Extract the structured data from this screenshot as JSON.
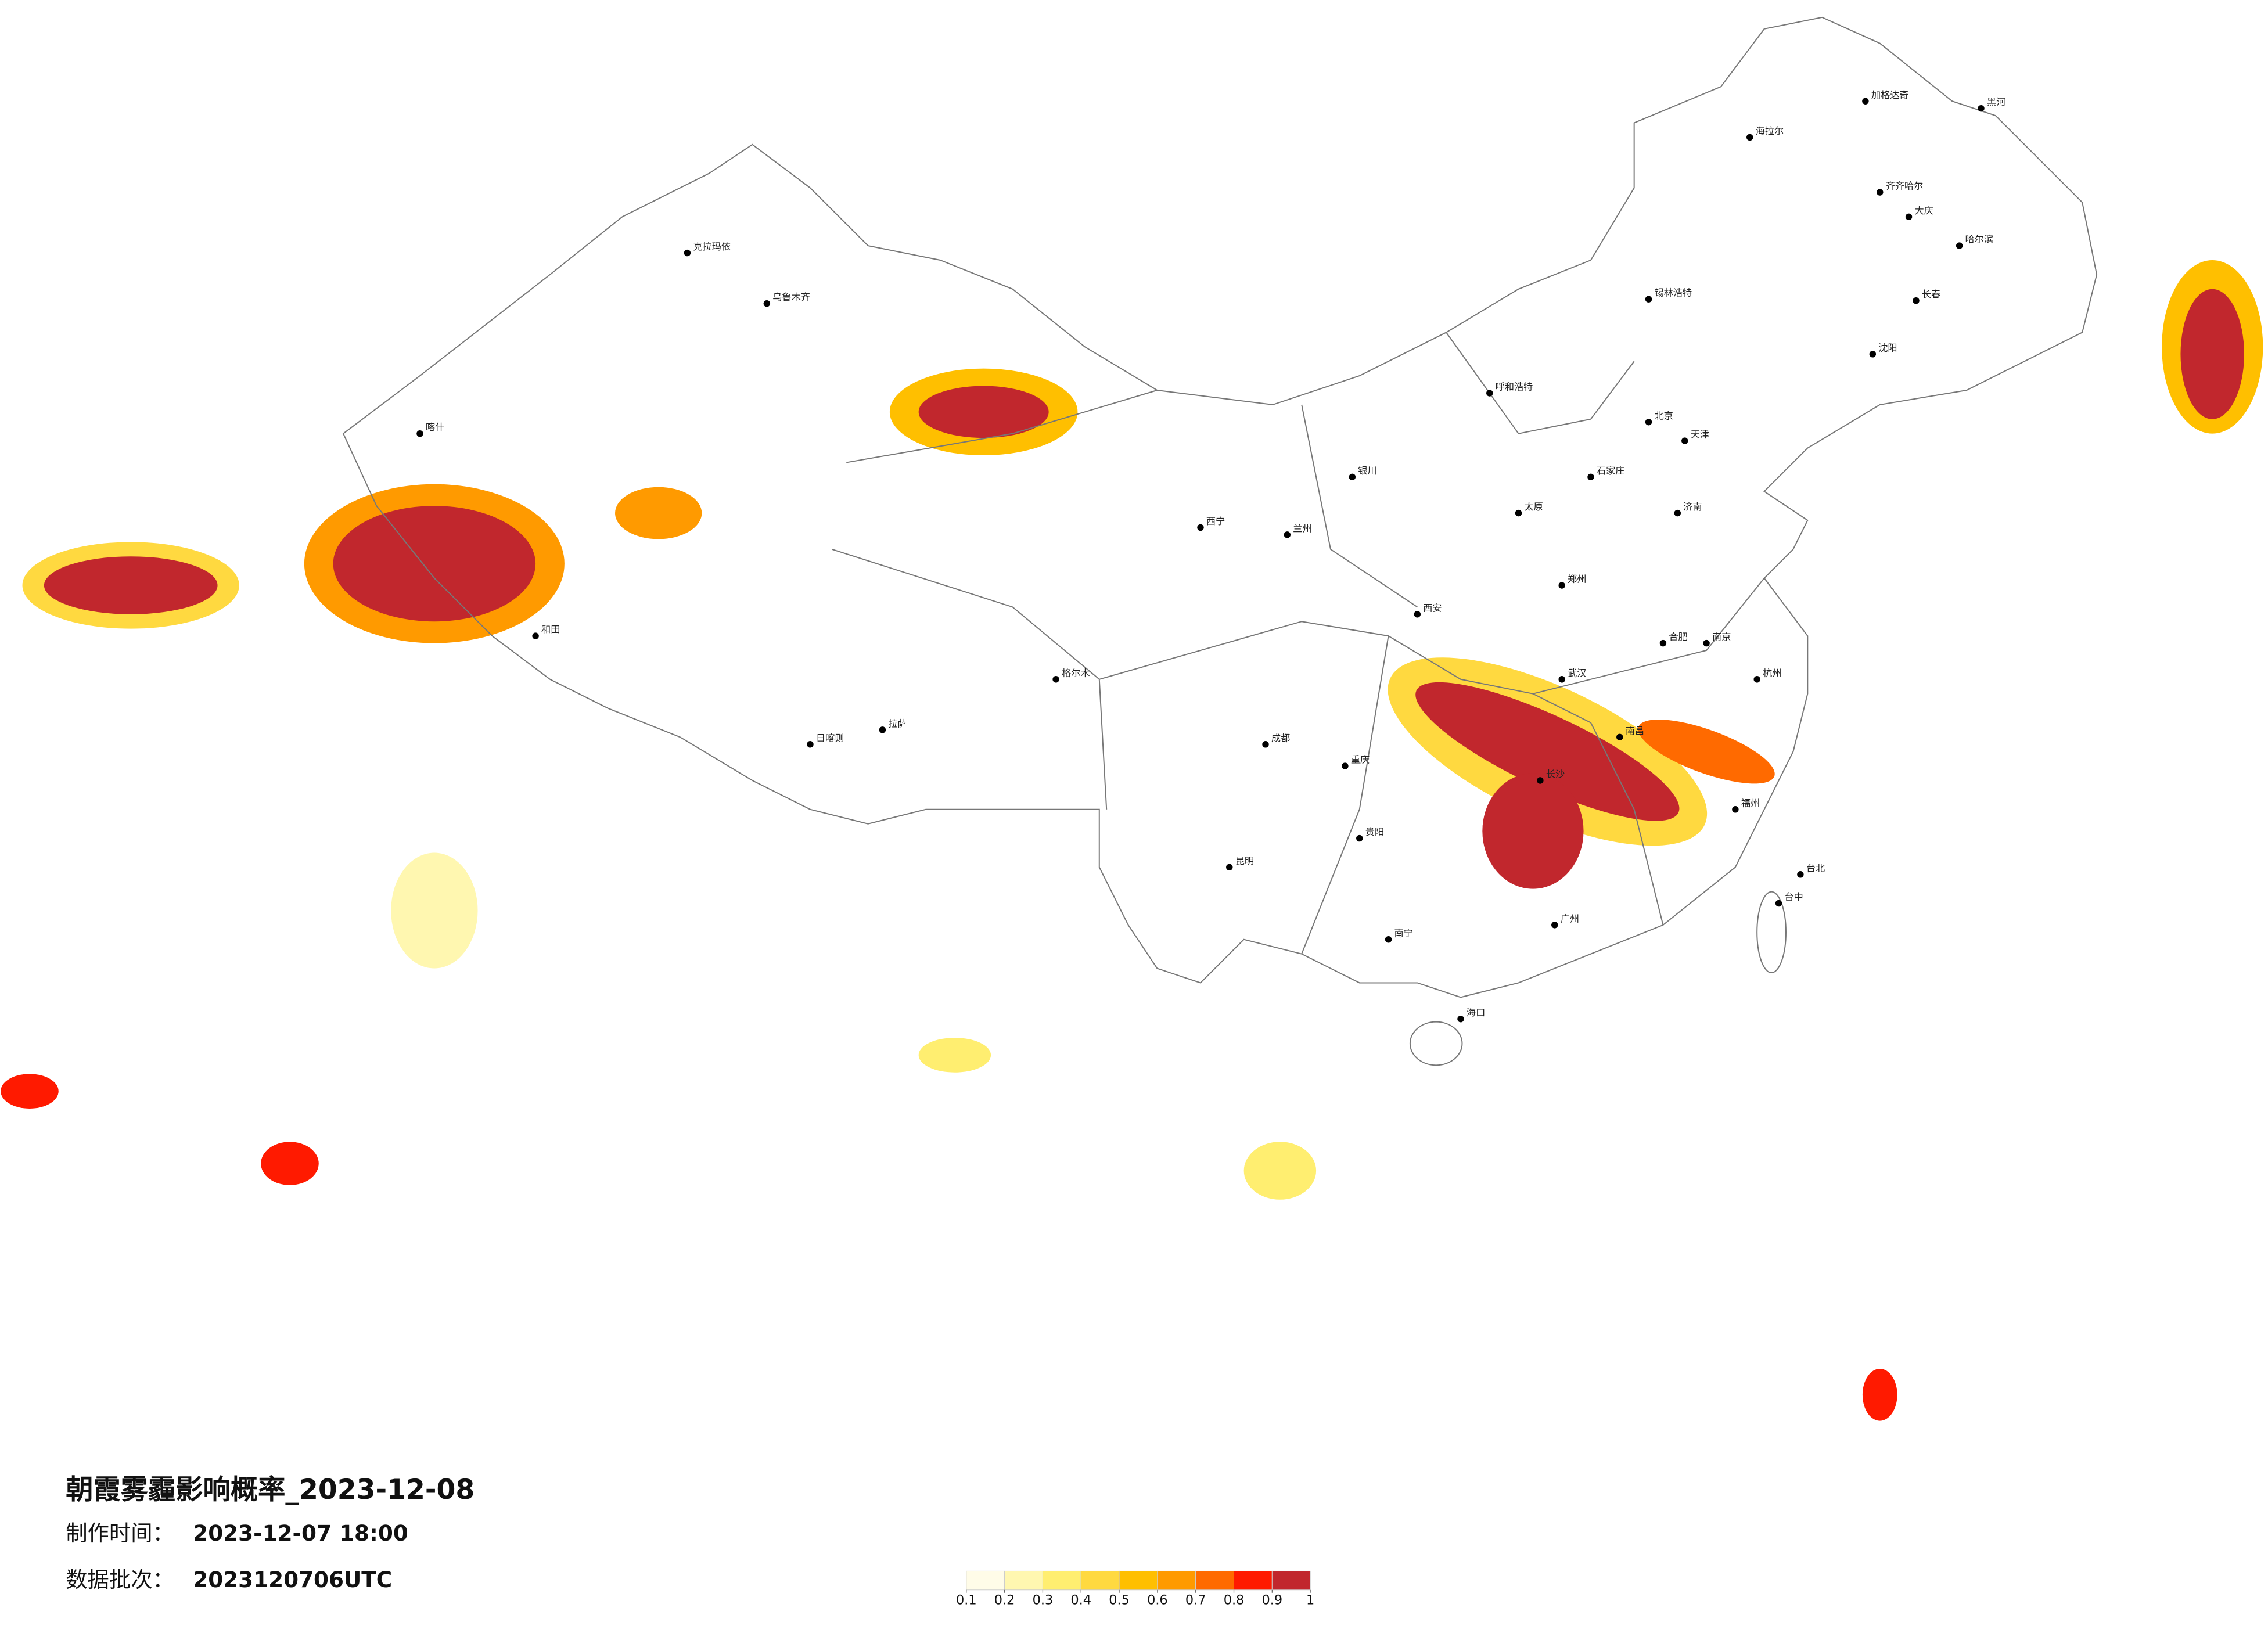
{
  "title": "朝霞雾霾影响概率_2023-12-08",
  "production_time": {
    "label": "制作时间：",
    "value": "2023-12-07 18:00"
  },
  "data_batch": {
    "label": "数据批次：",
    "value": "2023120706UTC"
  },
  "colorbar": {
    "ticks": [
      0.1,
      0.2,
      0.3,
      0.4,
      0.5,
      0.6,
      0.7,
      0.8,
      0.9,
      1
    ],
    "colors": [
      "#fffce8",
      "#fff7b0",
      "#ffee70",
      "#ffd940",
      "#ffbf00",
      "#ff9a00",
      "#ff6a00",
      "#ff1a00",
      "#c1272d"
    ]
  },
  "cities": [
    "海拉尔",
    "加格达奇",
    "黑河",
    "齐齐哈尔",
    "大庆",
    "哈尔滨",
    "长春",
    "沈阳",
    "锡林浩特",
    "呼和浩特",
    "北京",
    "天津",
    "石家庄",
    "太原",
    "济南",
    "郑州",
    "西安",
    "兰州",
    "西宁",
    "银川",
    "乌鲁木齐",
    "克拉玛依",
    "喀什",
    "和田",
    "拉萨",
    "日喀则",
    "格尔木",
    "成都",
    "重庆",
    "贵阳",
    "昆明",
    "南宁",
    "广州",
    "福州",
    "杭州",
    "南京",
    "武汉",
    "长沙",
    "南昌",
    "合肥",
    "海口",
    "台北",
    "台中"
  ]
}
